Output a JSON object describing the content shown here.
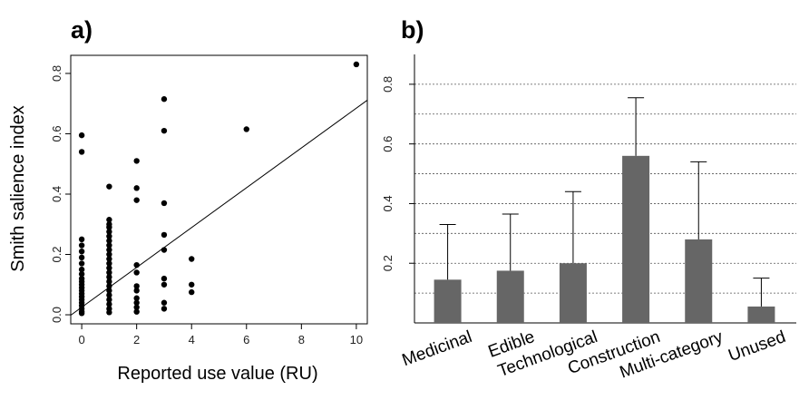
{
  "chart_data": [
    {
      "panel": "a)",
      "type": "scatter",
      "xlabel": "Reported use value (RU)",
      "ylabel": "Smith salience index",
      "xlim": [
        -0.4,
        10.4
      ],
      "ylim": [
        -0.03,
        0.86
      ],
      "xticks": [
        0,
        2,
        4,
        6,
        8,
        10
      ],
      "yticks": [
        0.0,
        0.2,
        0.4,
        0.6,
        0.8
      ],
      "ytick_labels": [
        "0.0",
        "0.2",
        "0.4",
        "0.6",
        "0.8"
      ],
      "grid": false,
      "points": [
        [
          0,
          0.595
        ],
        [
          0,
          0.54
        ],
        [
          0,
          0.25
        ],
        [
          0,
          0.23
        ],
        [
          0,
          0.21
        ],
        [
          0,
          0.19
        ],
        [
          0,
          0.17
        ],
        [
          0,
          0.15
        ],
        [
          0,
          0.135
        ],
        [
          0,
          0.12
        ],
        [
          0,
          0.11
        ],
        [
          0,
          0.1
        ],
        [
          0,
          0.09
        ],
        [
          0,
          0.08
        ],
        [
          0,
          0.07
        ],
        [
          0,
          0.06
        ],
        [
          0,
          0.05
        ],
        [
          0,
          0.04
        ],
        [
          0,
          0.03
        ],
        [
          0,
          0.02
        ],
        [
          0,
          0.01
        ],
        [
          0,
          0.005
        ],
        [
          1,
          0.425
        ],
        [
          1,
          0.315
        ],
        [
          1,
          0.3
        ],
        [
          1,
          0.29
        ],
        [
          1,
          0.275
        ],
        [
          1,
          0.26
        ],
        [
          1,
          0.245
        ],
        [
          1,
          0.23
        ],
        [
          1,
          0.215
        ],
        [
          1,
          0.2
        ],
        [
          1,
          0.185
        ],
        [
          1,
          0.17
        ],
        [
          1,
          0.155
        ],
        [
          1,
          0.14
        ],
        [
          1,
          0.125
        ],
        [
          1,
          0.11
        ],
        [
          1,
          0.095
        ],
        [
          1,
          0.08
        ],
        [
          1,
          0.065
        ],
        [
          1,
          0.05
        ],
        [
          1,
          0.035
        ],
        [
          1,
          0.02
        ],
        [
          1,
          0.008
        ],
        [
          2,
          0.51
        ],
        [
          2,
          0.42
        ],
        [
          2,
          0.38
        ],
        [
          2,
          0.165
        ],
        [
          2,
          0.14
        ],
        [
          2,
          0.095
        ],
        [
          2,
          0.08
        ],
        [
          2,
          0.055
        ],
        [
          2,
          0.04
        ],
        [
          2,
          0.025
        ],
        [
          2,
          0.01
        ],
        [
          3,
          0.715
        ],
        [
          3,
          0.61
        ],
        [
          3,
          0.37
        ],
        [
          3,
          0.265
        ],
        [
          3,
          0.215
        ],
        [
          3,
          0.12
        ],
        [
          3,
          0.1
        ],
        [
          3,
          0.04
        ],
        [
          3,
          0.02
        ],
        [
          4,
          0.185
        ],
        [
          4,
          0.1
        ],
        [
          4,
          0.075
        ],
        [
          6,
          0.615
        ],
        [
          10,
          0.83
        ]
      ],
      "regression_line": {
        "intercept": 0.025,
        "slope": 0.066
      }
    },
    {
      "panel": "b)",
      "type": "bar",
      "categories": [
        "Medicinal",
        "Edible",
        "Technological",
        "Construction",
        "Multi-category",
        "Unused"
      ],
      "values": [
        0.145,
        0.175,
        0.2,
        0.56,
        0.28,
        0.055
      ],
      "error_upper": [
        0.33,
        0.365,
        0.44,
        0.755,
        0.54,
        0.15
      ],
      "ylim": [
        0,
        0.9
      ],
      "yticks": [
        0.2,
        0.4,
        0.6,
        0.8
      ],
      "ytick_labels": [
        "0.2",
        "0.4",
        "0.6",
        "0.8"
      ],
      "grid": true,
      "bar_color": "#666666"
    }
  ]
}
